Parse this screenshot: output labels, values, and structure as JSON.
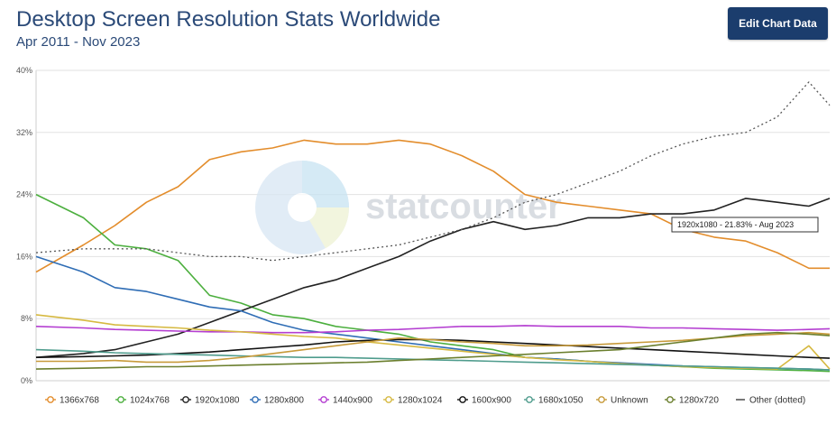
{
  "header": {
    "title": "Desktop Screen Resolution Stats Worldwide",
    "subtitle": "Apr 2011 - Nov 2023",
    "edit_button_label": "Edit Chart Data"
  },
  "watermark": "statcounter",
  "tooltip": "1920x1080 - 21.83% - Aug 2023",
  "chart_data": {
    "type": "line",
    "title": "Desktop Screen Resolution Stats Worldwide",
    "subtitle": "Apr 2011 - Nov 2023",
    "xlabel": "",
    "ylabel": "",
    "ylim": [
      0,
      40
    ],
    "yticks": [
      0,
      8,
      16,
      24,
      32,
      40
    ],
    "ytick_labels": [
      "0%",
      "8%",
      "16%",
      "24%",
      "32%",
      "40%"
    ],
    "x_range": [
      "Apr 2011",
      "Nov 2023"
    ],
    "x": [
      2011.25,
      2012.0,
      2012.5,
      2013.0,
      2013.5,
      2014.0,
      2014.5,
      2015.0,
      2015.5,
      2016.0,
      2016.5,
      2017.0,
      2017.5,
      2018.0,
      2018.5,
      2019.0,
      2019.5,
      2020.0,
      2020.5,
      2021.0,
      2021.5,
      2022.0,
      2022.5,
      2023.0,
      2023.5,
      2023.83
    ],
    "grid": true,
    "legend_position": "bottom",
    "series": [
      {
        "name": "1366x768",
        "color": "#e38d2c",
        "dash": "",
        "marker": "circle",
        "values": [
          14,
          17.5,
          20,
          23,
          25,
          28.5,
          29.5,
          30,
          31,
          30.5,
          30.5,
          31,
          30.5,
          29,
          27,
          24,
          23,
          22.5,
          22,
          21.5,
          19.5,
          18.5,
          18,
          16.5,
          14.5,
          14.5
        ]
      },
      {
        "name": "1024x768",
        "color": "#4caf3e",
        "dash": "",
        "marker": "circle",
        "values": [
          24,
          21,
          17.5,
          17,
          15.5,
          11,
          10,
          8.5,
          8,
          7,
          6.5,
          6,
          5,
          4.5,
          4,
          3,
          2.8,
          2.5,
          2.2,
          2,
          1.8,
          1.6,
          1.5,
          1.4,
          1.3,
          1.2
        ]
      },
      {
        "name": "1920x1080",
        "color": "#222222",
        "dash": "",
        "marker": "circle",
        "values": [
          3,
          3.5,
          4,
          5,
          6,
          7.5,
          9,
          10.5,
          12,
          13,
          14.5,
          16,
          18,
          19.5,
          20.5,
          19.5,
          20,
          21,
          21,
          21.5,
          21.5,
          22,
          23.5,
          23,
          22.5,
          23.5
        ]
      },
      {
        "name": "1280x800",
        "color": "#2f6db5",
        "dash": "",
        "marker": "circle",
        "values": [
          16,
          14,
          12,
          11.5,
          10.5,
          9.5,
          9,
          7.5,
          6.5,
          6,
          5.5,
          5,
          4.5,
          4,
          3.5,
          3,
          2.8,
          2.5,
          2.3,
          2.1,
          1.9,
          1.8,
          1.7,
          1.6,
          1.5,
          1.4
        ]
      },
      {
        "name": "1440x900",
        "color": "#b43ed1",
        "dash": "",
        "marker": "circle",
        "values": [
          7,
          6.8,
          6.6,
          6.5,
          6.4,
          6.3,
          6.3,
          6.2,
          6.2,
          6.3,
          6.5,
          6.6,
          6.8,
          7,
          7,
          7.1,
          7,
          7,
          7,
          6.8,
          6.8,
          6.7,
          6.6,
          6.5,
          6.6,
          6.7
        ]
      },
      {
        "name": "1280x1024",
        "color": "#d6b941",
        "dash": "",
        "marker": "circle",
        "values": [
          8.5,
          7.8,
          7.2,
          7,
          6.8,
          6.5,
          6.3,
          6,
          5.7,
          5.5,
          5,
          4.6,
          4.2,
          3.8,
          3.4,
          3,
          2.7,
          2.5,
          2.2,
          2,
          1.8,
          1.7,
          1.6,
          1.5,
          4.5,
          1.5
        ]
      },
      {
        "name": "1600x900",
        "color": "#111111",
        "dash": "",
        "marker": "circle",
        "values": [
          3,
          3.1,
          3.2,
          3.3,
          3.5,
          3.7,
          4,
          4.3,
          4.6,
          5,
          5.2,
          5.3,
          5.3,
          5.2,
          5,
          4.8,
          4.6,
          4.4,
          4.2,
          4,
          3.8,
          3.6,
          3.4,
          3.2,
          3,
          2.9
        ]
      },
      {
        "name": "1680x1050",
        "color": "#4f9c8d",
        "dash": "",
        "marker": "circle",
        "values": [
          4,
          3.8,
          3.6,
          3.5,
          3.4,
          3.3,
          3.2,
          3.1,
          3,
          3,
          2.9,
          2.8,
          2.7,
          2.6,
          2.5,
          2.4,
          2.3,
          2.2,
          2.1,
          2,
          1.9,
          1.8,
          1.7,
          1.6,
          1.5,
          1.4
        ]
      },
      {
        "name": "Unknown",
        "color": "#c79a3a",
        "dash": "",
        "marker": "circle",
        "values": [
          2.5,
          2.5,
          2.6,
          2.4,
          2.4,
          2.6,
          3,
          3.5,
          4,
          4.5,
          5,
          5.5,
          5.3,
          5,
          4.8,
          4.5,
          4.5,
          4.6,
          4.8,
          5,
          5.2,
          5.5,
          5.8,
          6,
          6.2,
          6
        ]
      },
      {
        "name": "1280x720",
        "color": "#6b7f2e",
        "dash": "",
        "marker": "circle",
        "values": [
          1.5,
          1.6,
          1.7,
          1.8,
          1.8,
          1.9,
          2,
          2.1,
          2.2,
          2.3,
          2.4,
          2.6,
          2.8,
          3,
          3.2,
          3.4,
          3.6,
          3.8,
          4,
          4.5,
          5,
          5.5,
          6,
          6.2,
          6,
          5.8
        ]
      },
      {
        "name": "Other (dotted)",
        "color": "#555555",
        "dash": "2,3",
        "marker": "dash",
        "values": [
          16.5,
          17,
          17,
          17,
          16.5,
          16,
          16,
          15.5,
          16,
          16.5,
          17,
          17.5,
          18.5,
          19.5,
          21,
          23,
          24,
          25.5,
          27,
          29,
          30.5,
          31.5,
          32,
          34,
          38.5,
          35.5
        ]
      }
    ]
  }
}
